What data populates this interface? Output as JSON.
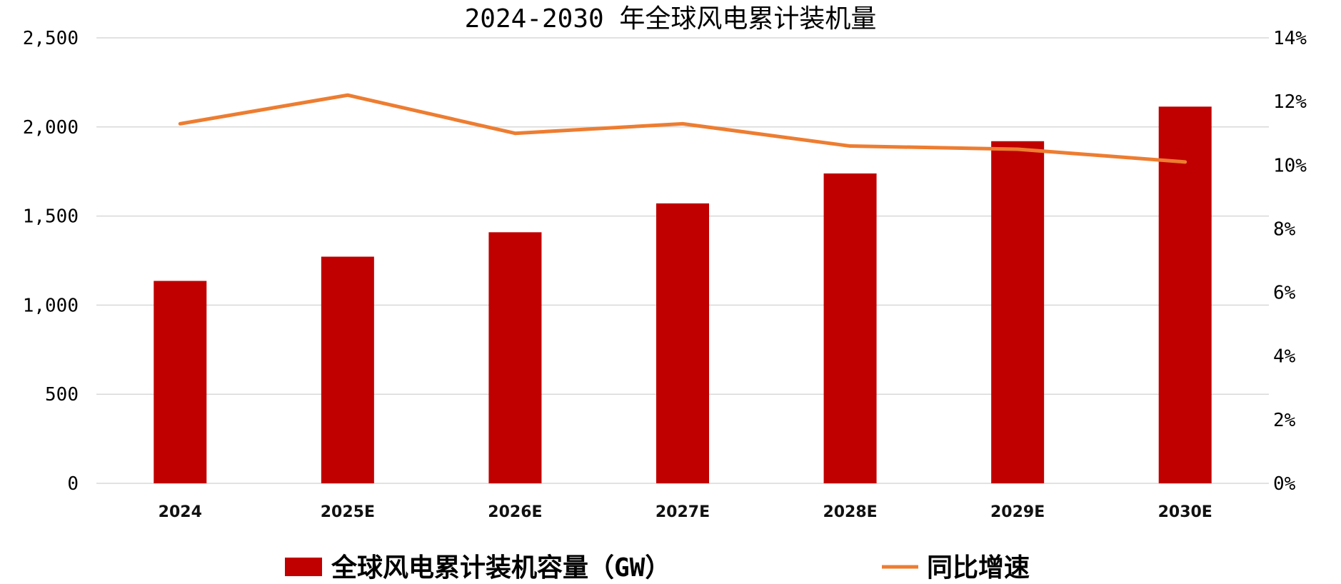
{
  "chart_data": {
    "type": "bar",
    "title": "2024-2030 年全球风电累计装机量",
    "categories": [
      "2024",
      "2025E",
      "2026E",
      "2027E",
      "2028E",
      "2029E",
      "2030E"
    ],
    "series": [
      {
        "name": "全球风电累计装机容量（GW）",
        "type": "bar",
        "axis": "left",
        "color": "#C00000",
        "values": [
          1136,
          1272,
          1409,
          1571,
          1739,
          1920,
          2114
        ]
      },
      {
        "name": "同比增速",
        "type": "line",
        "axis": "right",
        "color": "#ED7D31",
        "values": [
          0.113,
          0.122,
          0.11,
          0.113,
          0.106,
          0.105,
          0.101
        ]
      }
    ],
    "left_axis": {
      "min": 0,
      "max": 2500,
      "ticks": [
        0,
        500,
        1000,
        1500,
        2000,
        2500
      ],
      "tick_labels": [
        "0",
        "500",
        "1,000",
        "1,500",
        "2,000",
        "2,500"
      ]
    },
    "right_axis": {
      "min": 0,
      "max": 0.14,
      "ticks": [
        0,
        0.02,
        0.04,
        0.06,
        0.08,
        0.1,
        0.12,
        0.14
      ],
      "tick_labels": [
        "0%",
        "2%",
        "4%",
        "6%",
        "8%",
        "10%",
        "12%",
        "14%"
      ]
    },
    "grid": "horizontal",
    "legend_position": "bottom"
  }
}
